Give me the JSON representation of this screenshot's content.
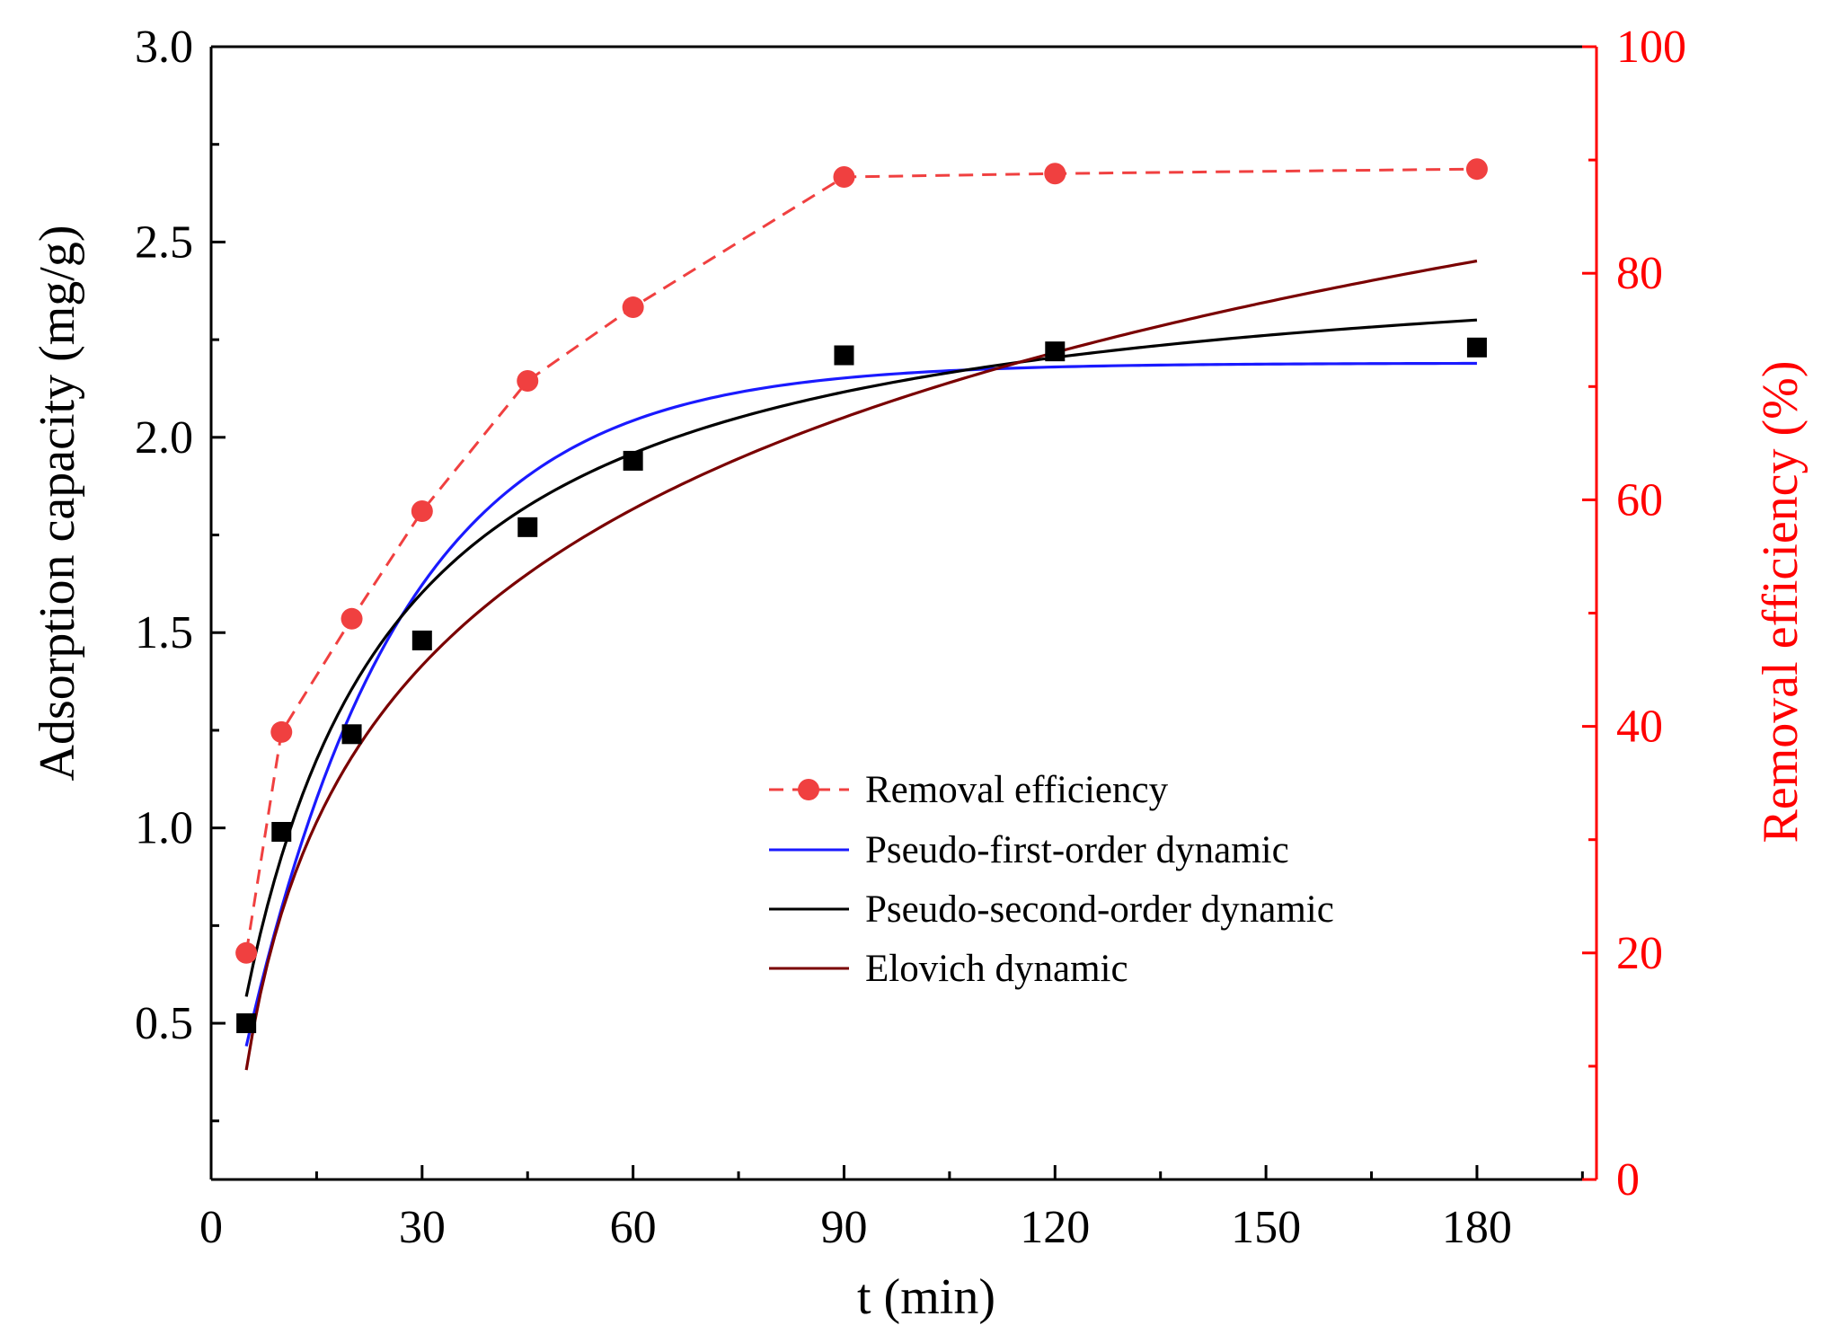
{
  "chart_data": {
    "type": "line",
    "title": "",
    "xlabel": "t (min)",
    "ylabel": "Adsorption capacity (mg/g)",
    "y2label": "Removal efficiency (%)",
    "xlim": [
      0,
      197
    ],
    "ylim": [
      0.1,
      3.0
    ],
    "y2lim": [
      0,
      100
    ],
    "xticks": [
      0,
      30,
      60,
      90,
      120,
      150,
      180
    ],
    "yticks": [
      0.5,
      1.0,
      1.5,
      2.0,
      2.5,
      3.0
    ],
    "y2ticks": [
      0,
      20,
      40,
      60,
      80,
      100
    ],
    "xtick_labels": [
      "0",
      "30",
      "60",
      "90",
      "120",
      "150",
      "180"
    ],
    "ytick_labels": [
      "0.5",
      "1.0",
      "1.5",
      "2.0",
      "2.5",
      "3.0"
    ],
    "y2tick_labels": [
      "0",
      "20",
      "40",
      "60",
      "80",
      "100"
    ],
    "legend_position": "center-right",
    "colors": {
      "axis": "#000000",
      "right_axis": "#ff0000",
      "removal": "#f04040",
      "pfo": "#1a1aff",
      "pso": "#000000",
      "elovich": "#7a0000",
      "capacity_points": "#000000"
    },
    "capacity_points": {
      "name": "Adsorption capacity",
      "x": [
        5,
        10,
        20,
        30,
        45,
        60,
        90,
        120,
        180
      ],
      "y": [
        0.5,
        0.99,
        1.24,
        1.48,
        1.77,
        1.94,
        2.21,
        2.22,
        2.23
      ]
    },
    "series": [
      {
        "name": "Removal efficiency",
        "axis": "right",
        "style": "dashed-markers",
        "x": [
          5,
          10,
          20,
          30,
          45,
          60,
          90,
          120,
          180
        ],
        "y": [
          20,
          39.5,
          49.5,
          59,
          70.5,
          77,
          88.5,
          88.8,
          89.2
        ]
      },
      {
        "name": "Pseudo-first-order dynamic",
        "axis": "left",
        "model": "pfo",
        "params": {
          "qe": 2.19,
          "k1": 0.045
        }
      },
      {
        "name": "Pseudo-second-order dynamic",
        "axis": "left",
        "model": "pso",
        "params": {
          "qe": 2.52,
          "k2": 0.0231
        }
      },
      {
        "name": "Elovich dynamic",
        "axis": "left",
        "model": "elovich",
        "params": {
          "A": -0.55,
          "B": 0.578
        }
      }
    ]
  }
}
